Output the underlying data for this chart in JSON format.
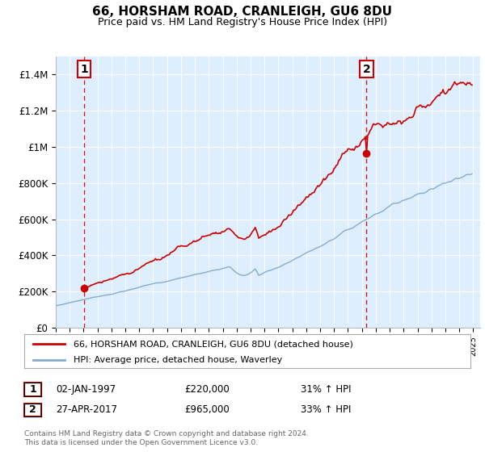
{
  "title": "66, HORSHAM ROAD, CRANLEIGH, GU6 8DU",
  "subtitle": "Price paid vs. HM Land Registry's House Price Index (HPI)",
  "legend_line1": "66, HORSHAM ROAD, CRANLEIGH, GU6 8DU (detached house)",
  "legend_line2": "HPI: Average price, detached house, Waverley",
  "annotation1_date": "02-JAN-1997",
  "annotation1_price": "£220,000",
  "annotation1_hpi": "31% ↑ HPI",
  "annotation2_date": "27-APR-2017",
  "annotation2_price": "£965,000",
  "annotation2_hpi": "33% ↑ HPI",
  "footer": "Contains HM Land Registry data © Crown copyright and database right 2024.\nThis data is licensed under the Open Government Licence v3.0.",
  "red_color": "#cc0000",
  "blue_color": "#88aacc",
  "plot_bg_color": "#ddeeff",
  "grid_color": "#ffffff",
  "ylim": [
    0,
    1500000
  ],
  "yticks": [
    0,
    200000,
    400000,
    600000,
    800000,
    1000000,
    1200000,
    1400000
  ],
  "ytick_labels": [
    "£0",
    "£200K",
    "£400K",
    "£600K",
    "£800K",
    "£1M",
    "£1.2M",
    "£1.4M"
  ],
  "sale1_year": 1997.04,
  "sale1_value": 220000,
  "sale2_year": 2017.33,
  "sale2_value": 965000
}
